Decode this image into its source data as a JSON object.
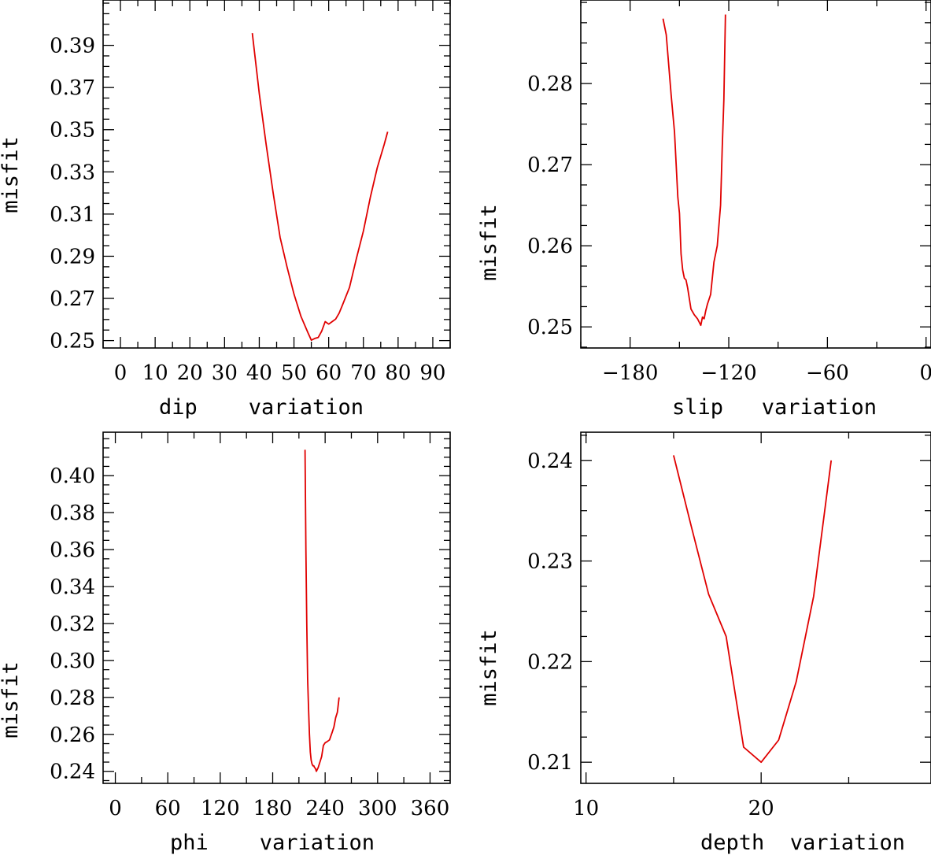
{
  "chart_data": [
    {
      "id": "dip",
      "type": "line",
      "xlabel": "dip    variation",
      "ylabel": "misfit",
      "xlim": [
        -5,
        95
      ],
      "ylim": [
        0.2465,
        0.4115
      ],
      "xticks": [
        0,
        10,
        20,
        30,
        40,
        50,
        60,
        70,
        80,
        90
      ],
      "xtick_labels": [
        "0",
        "10",
        "20",
        "30",
        "40",
        "50",
        "60",
        "70",
        "80",
        "90"
      ],
      "yticks": [
        0.25,
        0.27,
        0.29,
        0.31,
        0.33,
        0.35,
        0.37,
        0.39
      ],
      "ytick_labels": [
        "0.25",
        "0.27",
        "0.29",
        "0.31",
        "0.33",
        "0.35",
        "0.37",
        "0.39"
      ],
      "series": [
        {
          "color": "#e00000",
          "x": [
            38,
            40,
            42,
            44,
            46,
            48,
            50,
            52,
            54,
            55,
            56,
            57,
            58,
            59,
            60,
            61,
            62,
            63,
            64,
            66,
            68,
            70,
            72,
            74,
            76,
            77
          ],
          "y": [
            0.3958,
            0.367,
            0.3427,
            0.32,
            0.299,
            0.285,
            0.272,
            0.2615,
            0.2538,
            0.2502,
            0.251,
            0.2515,
            0.2545,
            0.259,
            0.2578,
            0.259,
            0.2602,
            0.263,
            0.267,
            0.2752,
            0.289,
            0.302,
            0.318,
            0.332,
            0.343,
            0.349
          ]
        }
      ]
    },
    {
      "id": "slip",
      "type": "line",
      "xlabel": "slip   variation",
      "ylabel": "misfit",
      "xlim": [
        -210,
        3
      ],
      "ylim": [
        0.2474,
        0.2903
      ],
      "xticks": [
        -180,
        -120,
        -60,
        0
      ],
      "xtick_labels": [
        "−180",
        "−120",
        "−60",
        "0"
      ],
      "yticks": [
        0.25,
        0.26,
        0.27,
        0.28
      ],
      "ytick_labels": [
        "0.25",
        "0.26",
        "0.27",
        "0.28"
      ],
      "series": [
        {
          "color": "#e00000",
          "x": [
            -160,
            -158,
            -155,
            -153,
            -151,
            -150,
            -149,
            -148,
            -147,
            -146,
            -145,
            -143,
            -141,
            -139,
            -137,
            -136,
            -135,
            -134,
            -133,
            -131,
            -129,
            -127,
            -125,
            -124,
            -123,
            -122
          ],
          "y": [
            0.288,
            0.286,
            0.2785,
            0.274,
            0.266,
            0.264,
            0.259,
            0.257,
            0.256,
            0.2558,
            0.2548,
            0.2522,
            0.2515,
            0.251,
            0.2502,
            0.2512,
            0.251,
            0.252,
            0.2528,
            0.254,
            0.258,
            0.26,
            0.265,
            0.272,
            0.278,
            0.2885
          ]
        }
      ]
    },
    {
      "id": "phi",
      "type": "line",
      "xlabel": "phi    variation",
      "ylabel": "misfit",
      "xlim": [
        -14,
        383
      ],
      "ylim": [
        0.2335,
        0.4235
      ],
      "xticks": [
        0,
        60,
        120,
        180,
        240,
        300,
        360
      ],
      "xtick_labels": [
        "0",
        "60",
        "120",
        "180",
        "240",
        "300",
        "360"
      ],
      "yticks": [
        0.24,
        0.26,
        0.28,
        0.3,
        0.32,
        0.34,
        0.36,
        0.38,
        0.4
      ],
      "ytick_labels": [
        "0.24",
        "0.26",
        "0.28",
        "0.30",
        "0.32",
        "0.34",
        "0.36",
        "0.38",
        "0.40"
      ],
      "series": [
        {
          "color": "#e00000",
          "x": [
            217,
            218,
            219,
            220,
            221,
            222,
            223,
            224,
            225,
            226,
            227,
            228,
            229,
            230,
            232,
            234,
            236,
            238,
            240,
            242,
            245,
            248,
            250,
            252,
            254,
            256
          ],
          "y": [
            0.414,
            0.36,
            0.32,
            0.29,
            0.275,
            0.26,
            0.2505,
            0.246,
            0.244,
            0.243,
            0.243,
            0.242,
            0.2415,
            0.24,
            0.242,
            0.245,
            0.248,
            0.254,
            0.2555,
            0.256,
            0.257,
            0.261,
            0.264,
            0.269,
            0.272,
            0.28
          ]
        }
      ]
    },
    {
      "id": "depth",
      "type": "line",
      "xlabel": "depth  variation",
      "ylabel": "misfit",
      "xlim": [
        9.7,
        29.7
      ],
      "ylim": [
        0.2079,
        0.2428
      ],
      "xticks": [
        10,
        20
      ],
      "xtick_labels": [
        "10",
        "20"
      ],
      "yticks": [
        0.21,
        0.22,
        0.23,
        0.24
      ],
      "ytick_labels": [
        "0.21",
        "0.22",
        "0.23",
        "0.24"
      ],
      "series": [
        {
          "color": "#e00000",
          "x": [
            15,
            16,
            17,
            18,
            19,
            20,
            21,
            22,
            23,
            24
          ],
          "y": [
            0.2405,
            0.2335,
            0.2267,
            0.2225,
            0.2115,
            0.21,
            0.2122,
            0.218,
            0.2265,
            0.24
          ]
        }
      ]
    }
  ]
}
